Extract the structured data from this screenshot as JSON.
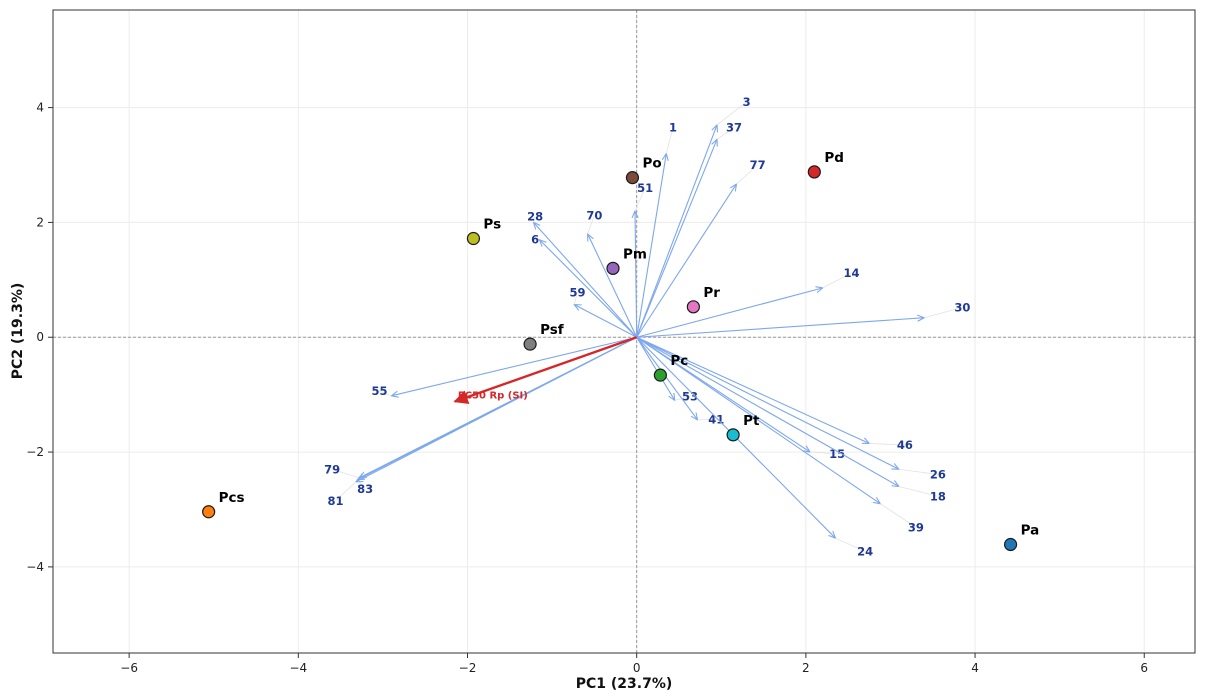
{
  "chart_data": {
    "type": "scatter",
    "subtype": "pca-biplot",
    "xlabel": "PC1 (23.7%)",
    "ylabel": "PC2 (19.3%)",
    "xlim": [
      -6.9,
      6.6
    ],
    "ylim": [
      -5.5,
      5.7
    ],
    "xticks": [
      -6,
      -4,
      -2,
      0,
      2,
      4,
      6
    ],
    "yticks": [
      -4,
      -2,
      0,
      2,
      4
    ],
    "xtick_labels": [
      "−6",
      "−4",
      "−2",
      "0",
      "2",
      "4",
      "6"
    ],
    "ytick_labels": [
      "−4",
      "−2",
      "0",
      "2",
      "4"
    ],
    "grid": true,
    "origin_lines": true,
    "loading_color": "#7da7ee",
    "loading_text_color": "#1f3a93",
    "ec50_color": "#d62728",
    "samples": [
      {
        "name": "Po",
        "x": -0.05,
        "y": 2.78,
        "color": "#7b4a3a"
      },
      {
        "name": "Pd",
        "x": 2.1,
        "y": 2.88,
        "color": "#d62728"
      },
      {
        "name": "Ps",
        "x": -1.93,
        "y": 1.72,
        "color": "#bcbd22"
      },
      {
        "name": "Pm",
        "x": -0.28,
        "y": 1.2,
        "color": "#9467bd"
      },
      {
        "name": "Pr",
        "x": 0.67,
        "y": 0.53,
        "color": "#e377c2"
      },
      {
        "name": "Psf",
        "x": -1.26,
        "y": -0.12,
        "color": "#7f7f7f"
      },
      {
        "name": "Pc",
        "x": 0.28,
        "y": -0.66,
        "color": "#2ca02c"
      },
      {
        "name": "Pt",
        "x": 1.14,
        "y": -1.7,
        "color": "#17becf"
      },
      {
        "name": "Pcs",
        "x": -5.06,
        "y": -3.04,
        "color": "#ff7f0e"
      },
      {
        "name": "Pa",
        "x": 4.42,
        "y": -3.61,
        "color": "#1f77b4"
      }
    ],
    "loadings": [
      {
        "name": "3",
        "x": 0.95,
        "y": 3.7,
        "lx": 1.3,
        "ly": 4.1
      },
      {
        "name": "1",
        "x": 0.35,
        "y": 3.2,
        "lx": 0.43,
        "ly": 3.65
      },
      {
        "name": "37",
        "x": 0.95,
        "y": 3.45,
        "lx": 1.15,
        "ly": 3.65
      },
      {
        "name": "77",
        "x": 1.18,
        "y": 2.67,
        "lx": 1.43,
        "ly": 3.0
      },
      {
        "name": "51",
        "x": -0.02,
        "y": 2.2,
        "lx": 0.1,
        "ly": 2.6
      },
      {
        "name": "28",
        "x": -1.22,
        "y": 2.0,
        "lx": -1.2,
        "ly": 2.1
      },
      {
        "name": "70",
        "x": -0.58,
        "y": 1.8,
        "lx": -0.5,
        "ly": 2.12
      },
      {
        "name": "6",
        "x": -1.15,
        "y": 1.7,
        "lx": -1.2,
        "ly": 1.7
      },
      {
        "name": "14",
        "x": 2.2,
        "y": 0.86,
        "lx": 2.54,
        "ly": 1.12
      },
      {
        "name": "59",
        "x": -0.74,
        "y": 0.57,
        "lx": -0.7,
        "ly": 0.78
      },
      {
        "name": "30",
        "x": 3.4,
        "y": 0.34,
        "lx": 3.85,
        "ly": 0.52
      },
      {
        "name": "55",
        "x": -2.9,
        "y": -1.02,
        "lx": -3.04,
        "ly": -0.94
      },
      {
        "name": "53",
        "x": 0.45,
        "y": -1.1,
        "lx": 0.63,
        "ly": -1.03
      },
      {
        "name": "41",
        "x": 0.72,
        "y": -1.44,
        "lx": 0.94,
        "ly": -1.43
      },
      {
        "name": "46",
        "x": 2.75,
        "y": -1.85,
        "lx": 3.17,
        "ly": -1.88
      },
      {
        "name": "15",
        "x": 2.05,
        "y": -2.0,
        "lx": 2.37,
        "ly": -2.03
      },
      {
        "name": "26",
        "x": 3.1,
        "y": -2.3,
        "lx": 3.56,
        "ly": -2.39
      },
      {
        "name": "18",
        "x": 3.1,
        "y": -2.6,
        "lx": 3.56,
        "ly": -2.77
      },
      {
        "name": "39",
        "x": 2.88,
        "y": -2.9,
        "lx": 3.3,
        "ly": -3.31
      },
      {
        "name": "24",
        "x": 2.35,
        "y": -3.5,
        "lx": 2.7,
        "ly": -3.73
      },
      {
        "name": "79",
        "x": -3.28,
        "y": -2.45,
        "lx": -3.6,
        "ly": -2.3
      },
      {
        "name": "83",
        "x": -3.3,
        "y": -2.48,
        "lx": -3.21,
        "ly": -2.64
      },
      {
        "name": "81",
        "x": -3.32,
        "y": -2.52,
        "lx": -3.56,
        "ly": -2.85
      }
    ],
    "ec50": {
      "name": "EC50 Rp (SI)",
      "x": -2.15,
      "y": -1.12,
      "lx": -1.7,
      "ly": -1.0
    }
  }
}
